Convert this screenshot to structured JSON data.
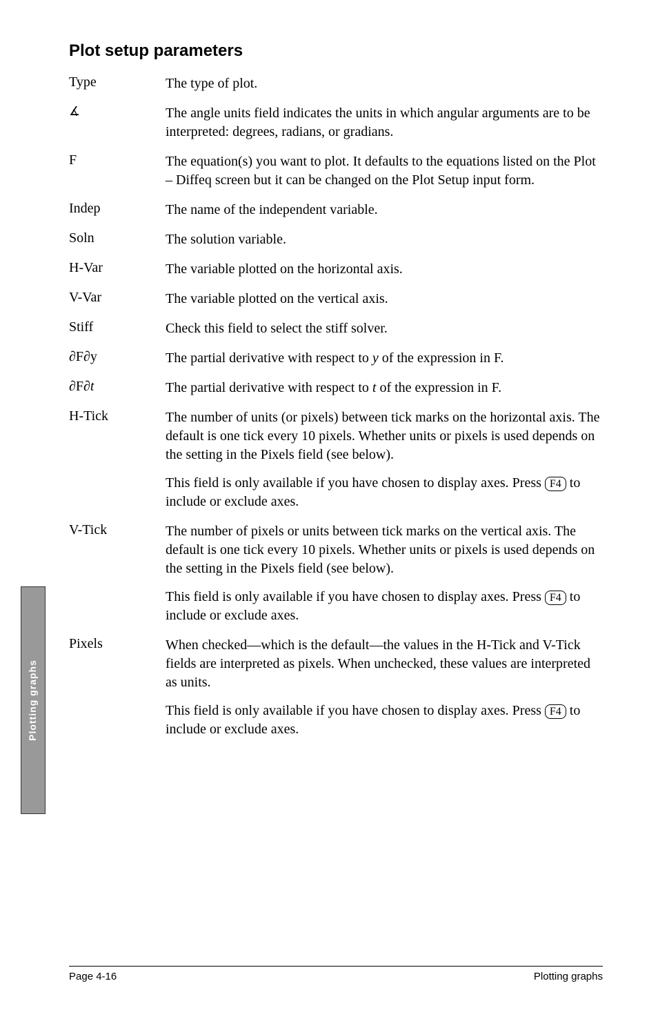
{
  "title": "Plot setup parameters",
  "sideTab": "Plotting graphs",
  "params": {
    "type": {
      "name": "Type",
      "desc": "The type of plot."
    },
    "angle": {
      "name": "∡",
      "desc": "The angle units field indicates the units in which angular arguments are to be interpreted: degrees, radians, or gradians."
    },
    "f": {
      "name": "F",
      "desc": "The equation(s) you want to plot. It defaults to the equations listed on the Plot – Diffeq screen but it can be changed on the Plot Setup input form."
    },
    "indep": {
      "name": "Indep",
      "desc": "The name of the independent variable."
    },
    "soln": {
      "name": "Soln",
      "desc": "The solution variable."
    },
    "hvar": {
      "name": "H-Var",
      "desc": "The variable plotted on the horizontal axis."
    },
    "vvar": {
      "name": "V-Var",
      "desc": "The variable plotted on the vertical axis."
    },
    "stiff": {
      "name": "Stiff",
      "desc": "Check this field to select the stiff solver."
    },
    "dfdy": {
      "name": "∂F∂y",
      "desc1": "The partial derivative with respect to ",
      "italic1": "y",
      "desc2": " of the expression in F."
    },
    "dfdt": {
      "name_pre": "∂F∂",
      "name_italic": "t",
      "desc1": "The partial derivative with respect to ",
      "italic1": "t",
      "desc2": " of the expression in F."
    },
    "htick": {
      "name": "H-Tick",
      "p1": "The number of units (or pixels) between tick marks on the horizontal axis. The default is one tick every 10 pixels. Whether units or pixels is used depends on the setting in the Pixels field (see below).",
      "p2a": "This field is only available if you have chosen to display axes. Press ",
      "key": "F4",
      "p2b": " to include or exclude axes."
    },
    "vtick": {
      "name": "V-Tick",
      "p1": "The number of pixels or units between tick marks on the vertical axis. The default is one tick every 10 pixels. Whether units or pixels is used depends on the setting in the Pixels field (see below).",
      "p2a": "This field is only available if you have chosen to display axes. Press ",
      "key": "F4",
      "p2b": " to include or exclude axes."
    },
    "pixels": {
      "name": "Pixels",
      "p1": "When checked—which is the default—the values in the H-Tick and V-Tick fields are interpreted as pixels. When unchecked, these values are interpreted as units.",
      "p2a": "This field is only available if you have chosen to display axes. Press ",
      "key": "F4",
      "p2b": " to include or exclude axes."
    }
  },
  "footer": {
    "left": "Page 4-16",
    "right": "Plotting graphs"
  }
}
